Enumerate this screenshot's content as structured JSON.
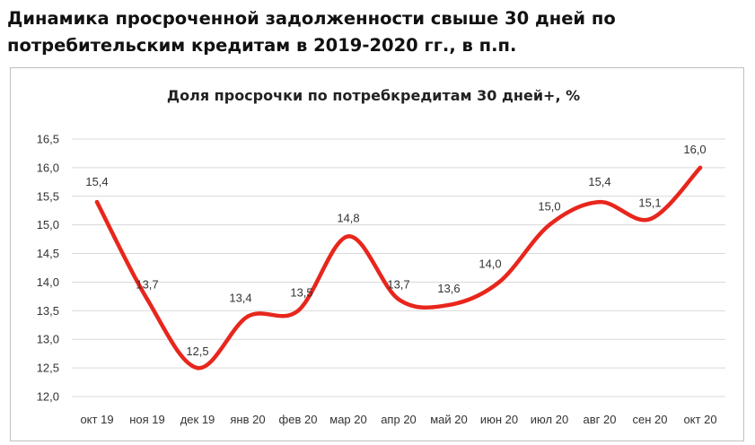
{
  "page": {
    "heading_line1": "Динамика просроченной задолженности свыше 30 дней по",
    "heading_line2": "потребительским кредитам в 2019-2020 гг., в п.п."
  },
  "chart_data": {
    "type": "line",
    "title": "Доля просрочки по потребкредитам 30 дней+,  %",
    "xlabel": "",
    "ylabel": "",
    "categories": [
      "окт 19",
      "ноя 19",
      "дек 19",
      "янв 20",
      "фев 20",
      "мар 20",
      "апр 20",
      "май 20",
      "июн 20",
      "июл 20",
      "авг 20",
      "сен 20",
      "окт 20"
    ],
    "series": [
      {
        "values": [
          15.4,
          13.7,
          12.5,
          13.4,
          13.5,
          14.8,
          13.7,
          13.6,
          14.0,
          15.0,
          15.4,
          15.1,
          16.0
        ],
        "labels": [
          "15,4",
          "13,7",
          "12,5",
          "13,4",
          "13,5",
          "14,8",
          "13,7",
          "13,6",
          "14,0",
          "15,0",
          "15,4",
          "15,1",
          "16,0"
        ],
        "color": "#e8261c",
        "smooth": true
      }
    ],
    "ylim": [
      12.0,
      16.5
    ],
    "yticks": [
      12.0,
      12.5,
      13.0,
      13.5,
      14.0,
      14.5,
      15.0,
      15.5,
      16.0,
      16.5
    ],
    "ytick_labels": [
      "12,0",
      "12,5",
      "13,0",
      "13,5",
      "14,0",
      "14,5",
      "15,0",
      "15,5",
      "16,0",
      "16,5"
    ],
    "grid": true,
    "grid_color": "#d9d9d9",
    "legend": "none"
  }
}
